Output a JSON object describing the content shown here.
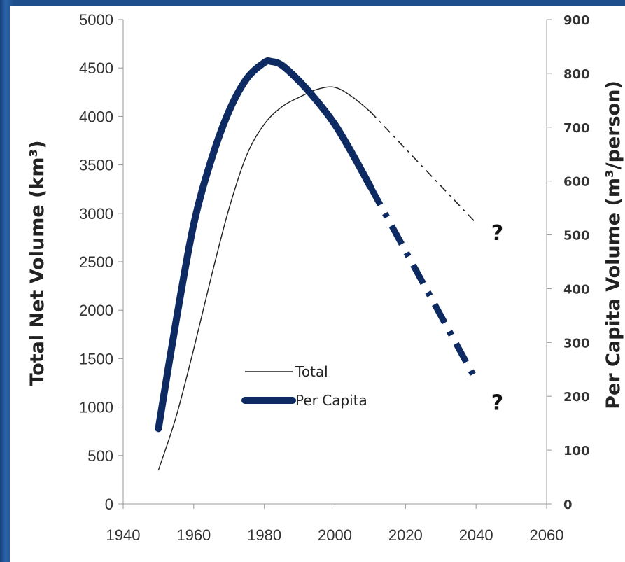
{
  "chart_data": {
    "type": "line",
    "title": "",
    "xlabel": "",
    "ylabel_left": "Total Net Volume (km³)",
    "ylabel_right": "Per Capita Volume (m³/person)",
    "xlim": [
      1940,
      2060
    ],
    "ylim_left": [
      0,
      5000
    ],
    "ylim_right": [
      0,
      900
    ],
    "x_ticks": [
      "1940",
      "1960",
      "1980",
      "2000",
      "2020",
      "2040",
      "2060"
    ],
    "y_ticks_left": [
      "0",
      "500",
      "1000",
      "1500",
      "2000",
      "2500",
      "3000",
      "3500",
      "4000",
      "4500",
      "5000"
    ],
    "y_ticks_right": [
      "0",
      "100",
      "200",
      "300",
      "400",
      "500",
      "600",
      "700",
      "800",
      "900"
    ],
    "grid": false,
    "legend": {
      "placement": "center-left"
    },
    "series": [
      {
        "name": "Total",
        "axis": "left",
        "color": "#222222",
        "style": "thin",
        "values": [
          [
            1950,
            350
          ],
          [
            1955,
            900
          ],
          [
            1960,
            1600
          ],
          [
            1965,
            2350
          ],
          [
            1970,
            3050
          ],
          [
            1975,
            3600
          ],
          [
            1980,
            3920
          ],
          [
            1985,
            4100
          ],
          [
            1990,
            4200
          ],
          [
            1995,
            4280
          ],
          [
            2000,
            4300
          ],
          [
            2005,
            4200
          ],
          [
            2010,
            4050
          ]
        ],
        "projection": [
          [
            2010,
            4050
          ],
          [
            2040,
            2900
          ]
        ]
      },
      {
        "name": "Per Capita",
        "axis": "right",
        "color": "#0d2a63",
        "style": "thick",
        "values": [
          [
            1950,
            140
          ],
          [
            1955,
            340
          ],
          [
            1960,
            520
          ],
          [
            1965,
            640
          ],
          [
            1970,
            730
          ],
          [
            1975,
            790
          ],
          [
            1980,
            820
          ],
          [
            1982,
            822
          ],
          [
            1985,
            815
          ],
          [
            1990,
            785
          ],
          [
            1995,
            748
          ],
          [
            2000,
            705
          ],
          [
            2005,
            650
          ],
          [
            2010,
            590
          ]
        ],
        "projection": [
          [
            2010,
            590
          ],
          [
            2040,
            230
          ]
        ]
      }
    ],
    "annotations": [
      {
        "text": "?",
        "x": 2046,
        "y_right": 490
      },
      {
        "text": "?",
        "x": 2046,
        "y_right": 175
      }
    ]
  }
}
